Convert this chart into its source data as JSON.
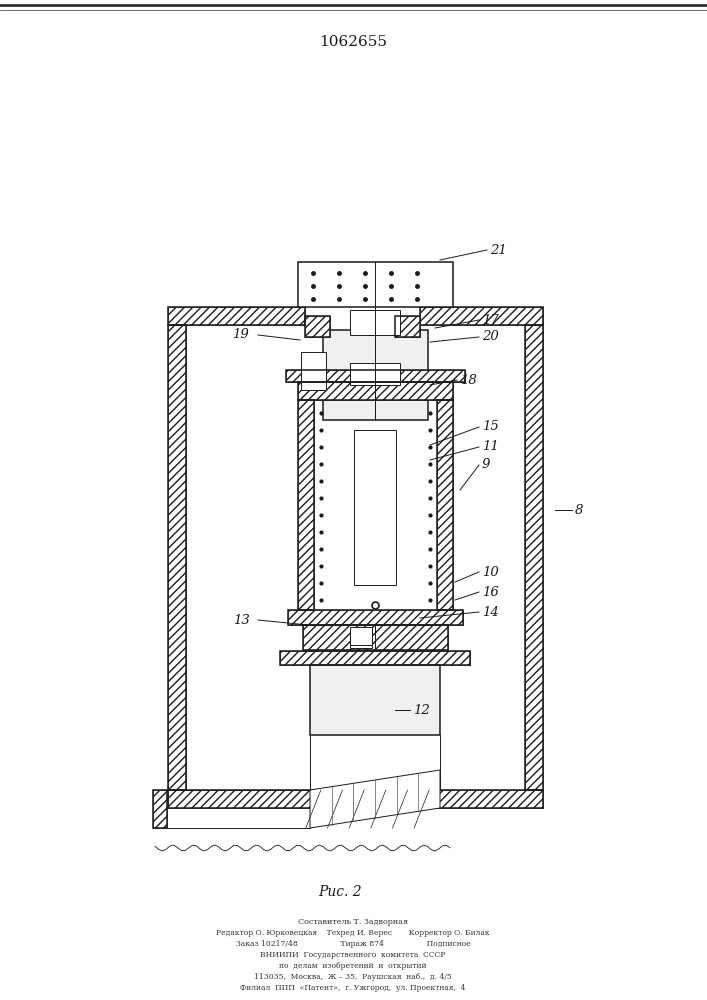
{
  "patent_number": "1062655",
  "fig_label": "Puc. 2",
  "bg_color": "#ffffff",
  "line_color": "#1a1a1a",
  "footer_lines": [
    "Составитель Т. Задворная",
    "Редактор О. Юрковецкая    Техред И. Верес       Корректор О. Билак",
    "Заказ 10217/48                  Тираж 874                  Подписное",
    "ВНИИПИ  Государственного  комитета  СССР",
    "по  делам  изобретений  и  открытий",
    "113035,  Москва,  Ж – 35,  Раушская  наб.,  д. 4/5",
    "Филиал  ППП  «Патент»,  г. Ужгород,  ул. Проектная,  4"
  ]
}
